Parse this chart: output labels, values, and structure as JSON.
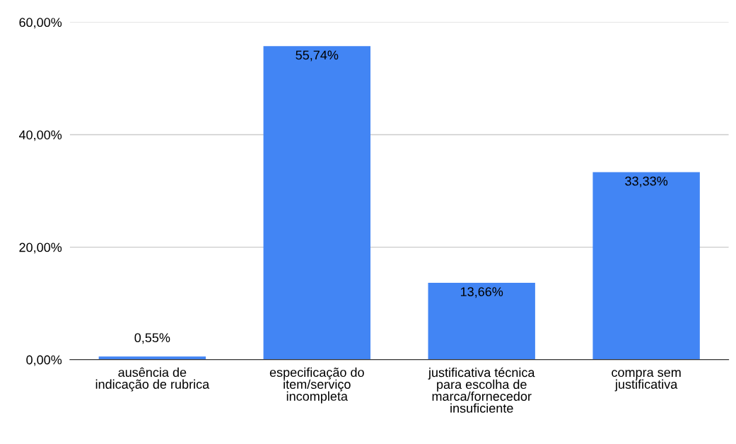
{
  "chart_data": {
    "type": "bar",
    "categories": [
      "ausência de\nindicação de rubrica",
      "especificação do\nitem/serviço\nincompleta",
      "justificativa técnica\npara escolha de\nmarca/fornecedor\ninsuficiente",
      "compra sem\njustificativa"
    ],
    "values": [
      0.55,
      55.74,
      13.66,
      33.33
    ],
    "value_labels": [
      "0,55%",
      "55,74%",
      "13,66%",
      "33,33%"
    ],
    "color": "#4285f4",
    "ylim": [
      0,
      60
    ],
    "yticks": [
      {
        "value": 0,
        "label": "0,00%"
      },
      {
        "value": 20,
        "label": "20,00%"
      },
      {
        "value": 40,
        "label": "40,00%"
      },
      {
        "value": 60,
        "label": "60,00%"
      }
    ],
    "grid": "y",
    "legend": false
  }
}
